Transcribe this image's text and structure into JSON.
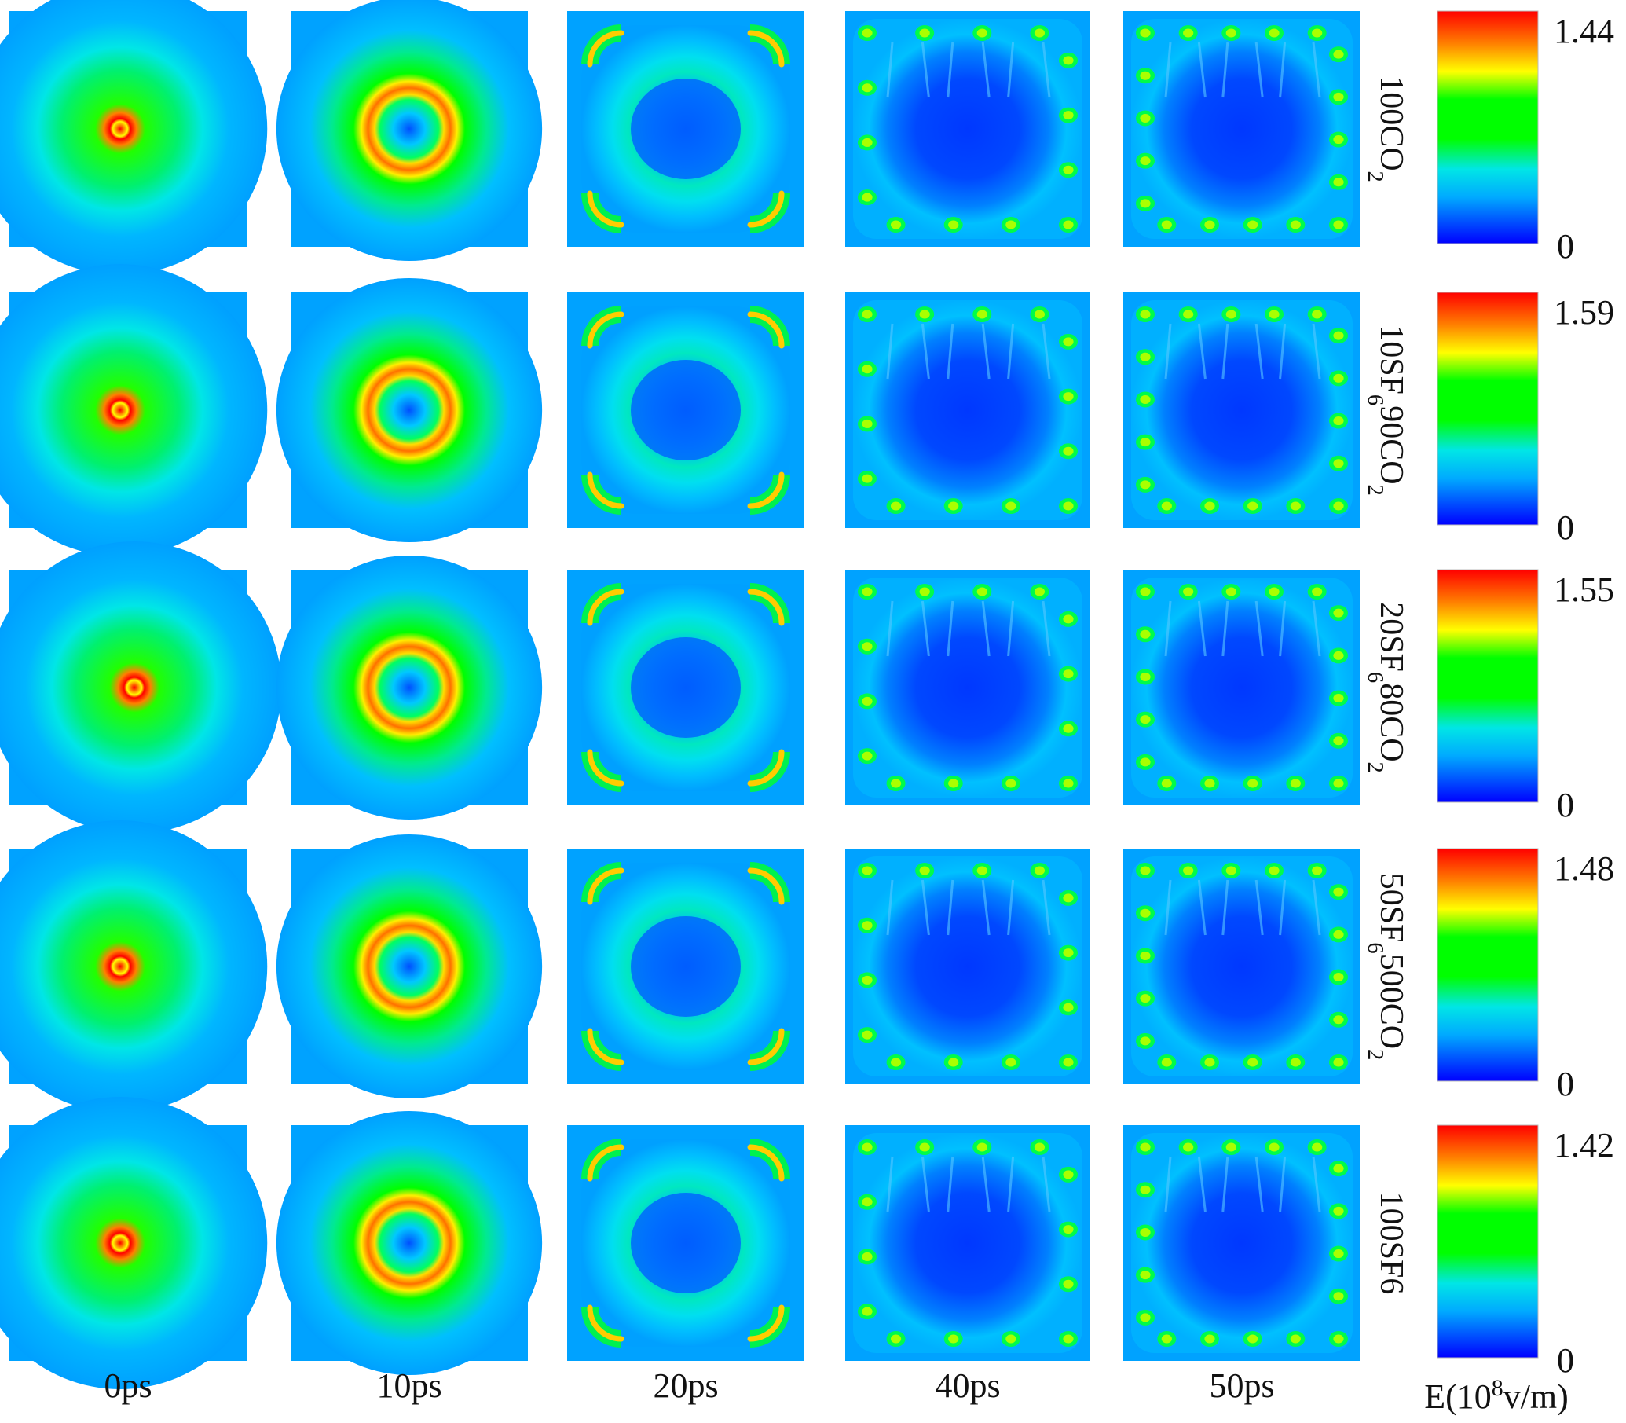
{
  "chart_data": {
    "type": "heatmap",
    "title": "",
    "time_labels": [
      "0ps",
      "10ps",
      "20ps",
      "40ps",
      "50ps"
    ],
    "rows": [
      {
        "label_parts": [
          {
            "t": "100CO"
          },
          {
            "t": "2",
            "sub": true
          }
        ],
        "colorbar_max": "1.44",
        "colorbar_min": "0"
      },
      {
        "label_parts": [
          {
            "t": "10SF"
          },
          {
            "t": "6",
            "sub": true
          },
          {
            "t": "90CO"
          },
          {
            "t": "2",
            "sub": true
          }
        ],
        "colorbar_max": "1.59",
        "colorbar_min": "0"
      },
      {
        "label_parts": [
          {
            "t": "20SF"
          },
          {
            "t": "6",
            "sub": true
          },
          {
            "t": "80CO"
          },
          {
            "t": "2",
            "sub": true
          }
        ],
        "colorbar_max": "1.55",
        "colorbar_min": "0"
      },
      {
        "label_parts": [
          {
            "t": "50SF"
          },
          {
            "t": "6",
            "sub": true
          },
          {
            "t": "500CO"
          },
          {
            "t": "2",
            "sub": true
          }
        ],
        "colorbar_max": "1.48",
        "colorbar_min": "0"
      },
      {
        "label_parts": [
          {
            "t": "100SF6"
          }
        ],
        "colorbar_max": "1.42",
        "colorbar_min": "0"
      }
    ],
    "colorbar_label_parts": [
      {
        "t": "E(10"
      },
      {
        "t": "8",
        "sup": true
      },
      {
        "t": "v/m)"
      }
    ],
    "colorscale": [
      "#0000ff",
      "#00aaff",
      "#00e6e6",
      "#00ff00",
      "#ffff00",
      "#ff8000",
      "#ff0000"
    ]
  }
}
